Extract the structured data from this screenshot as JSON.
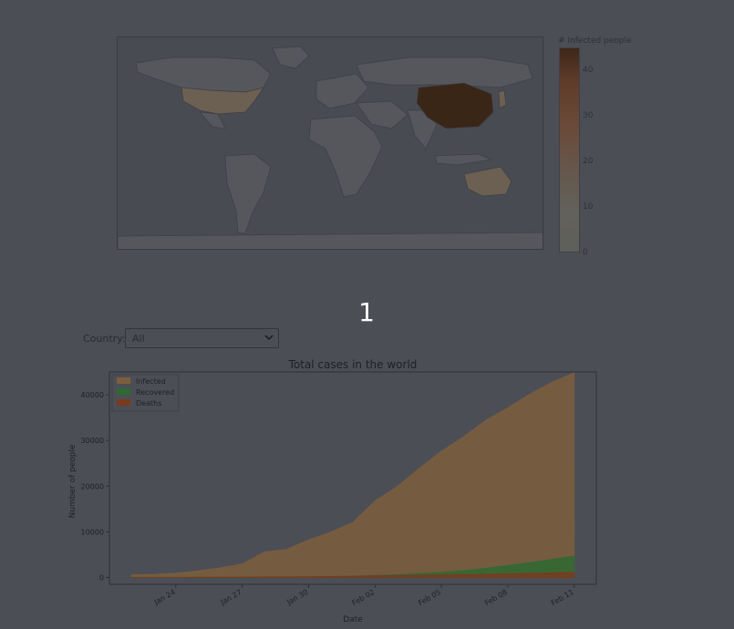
{
  "frame_number": "1",
  "colorbar": {
    "title": "# Infected people",
    "ticks": [
      "0",
      "10",
      "20",
      "30",
      "40"
    ]
  },
  "country_filter": {
    "label": "Country:",
    "selected": "All"
  },
  "colors": {
    "infected": "#7d5e3c",
    "recovered": "#2e6a32",
    "deaths": "#7a3a1e",
    "map_land": "#55575d",
    "map_china": "#3a2617",
    "map_highlight": "#6b6052"
  },
  "chart_data": {
    "type": "area",
    "title": "Total cases in the world",
    "xlabel": "Date",
    "ylabel": "Number of people",
    "ylim": [
      -1500,
      45000
    ],
    "xlim": [
      "2020-01-21",
      "2020-02-12"
    ],
    "legend_position": "top-left",
    "x_tick_labels": [
      "Jan 24",
      "Jan 27",
      "Jan 30",
      "Feb 02",
      "Feb 05",
      "Feb 08",
      "Feb 11"
    ],
    "x_tick_dates": [
      "2020-01-24",
      "2020-01-27",
      "2020-01-30",
      "2020-02-02",
      "2020-02-05",
      "2020-02-08",
      "2020-02-11"
    ],
    "y_ticks": [
      0,
      10000,
      20000,
      30000,
      40000
    ],
    "x": [
      "2020-01-22",
      "2020-01-23",
      "2020-01-24",
      "2020-01-25",
      "2020-01-26",
      "2020-01-27",
      "2020-01-28",
      "2020-01-29",
      "2020-01-30",
      "2020-01-31",
      "2020-02-01",
      "2020-02-02",
      "2020-02-03",
      "2020-02-04",
      "2020-02-05",
      "2020-02-06",
      "2020-02-07",
      "2020-02-08",
      "2020-02-09",
      "2020-02-10",
      "2020-02-11"
    ],
    "series": [
      {
        "name": "Infected",
        "values": [
          555,
          653,
          941,
          1434,
          2118,
          2927,
          5578,
          6166,
          8234,
          9927,
          12038,
          16787,
          19881,
          23892,
          27635,
          30794,
          34391,
          37120,
          40150,
          42762,
          44802
        ]
      },
      {
        "name": "Recovered",
        "values": [
          28,
          30,
          36,
          39,
          52,
          61,
          107,
          126,
          143,
          222,
          284,
          472,
          623,
          852,
          1124,
          1487,
          2011,
          2616,
          3244,
          3946,
          4683
        ]
      },
      {
        "name": "Deaths",
        "values": [
          17,
          18,
          26,
          42,
          56,
          82,
          131,
          133,
          171,
          213,
          259,
          362,
          426,
          492,
          564,
          634,
          719,
          806,
          906,
          1013,
          1113
        ]
      }
    ]
  }
}
